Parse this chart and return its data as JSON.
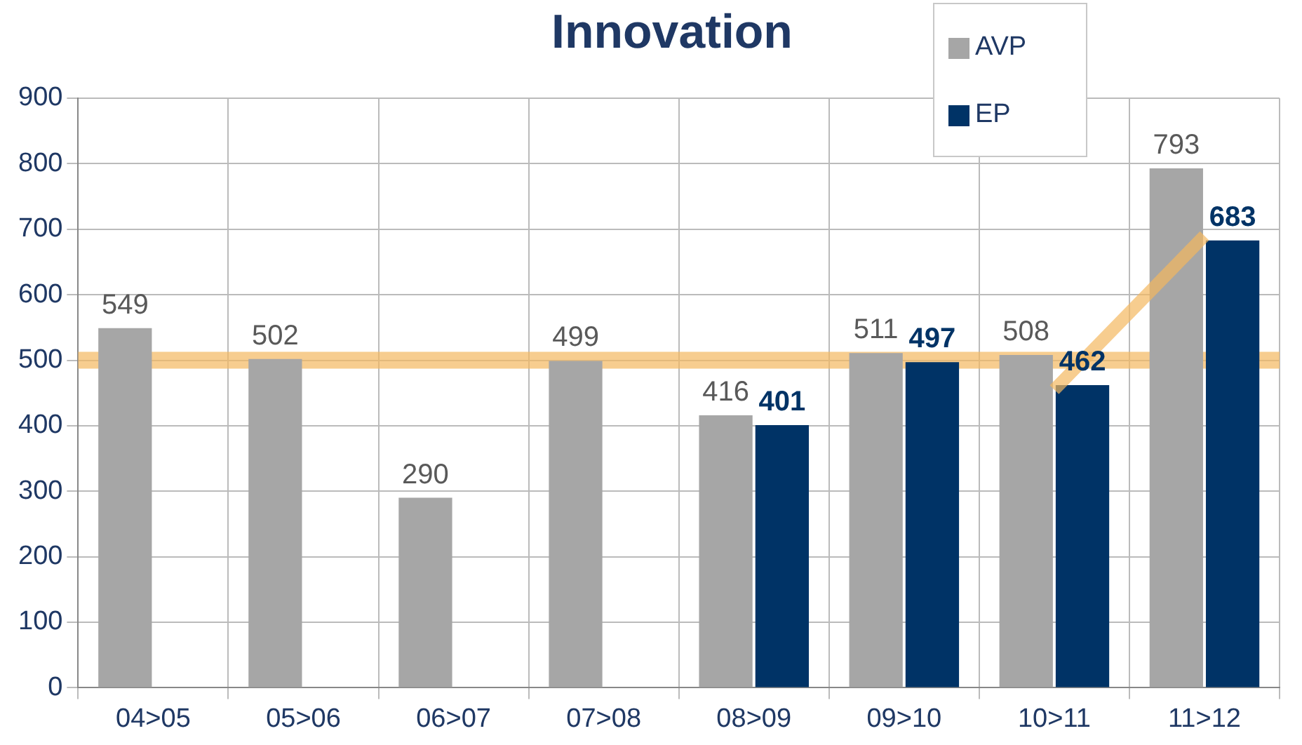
{
  "chart_data": {
    "type": "bar",
    "title": "Innovation",
    "categories": [
      "04>05",
      "05>06",
      "06>07",
      "07>08",
      "08>09",
      "09>10",
      "10>11",
      "11>12"
    ],
    "series": [
      {
        "name": "AVP",
        "color": "#a6a6a6",
        "values": [
          549,
          502,
          290,
          499,
          416,
          511,
          508,
          793
        ],
        "value_labels": [
          "549",
          "502",
          "290",
          "499",
          "416",
          "511",
          "508",
          "793"
        ]
      },
      {
        "name": "EP",
        "color": "#003366",
        "values": [
          null,
          null,
          null,
          null,
          401,
          497,
          462,
          683
        ],
        "value_labels": [
          null,
          null,
          null,
          null,
          "401",
          "497",
          "462",
          "683"
        ]
      },
      {
        "type": "line",
        "color": "#f4b860",
        "values": [
          null,
          null,
          null,
          null,
          null,
          null,
          455,
          690
        ]
      }
    ],
    "ylim": [
      0,
      900
    ],
    "yticks": [
      0,
      100,
      200,
      300,
      400,
      500,
      600,
      700,
      800,
      900
    ],
    "ref_lines": [
      {
        "axis": "y",
        "value": 500,
        "color": "#f4b860"
      }
    ],
    "grid": true,
    "legend": "top right"
  }
}
